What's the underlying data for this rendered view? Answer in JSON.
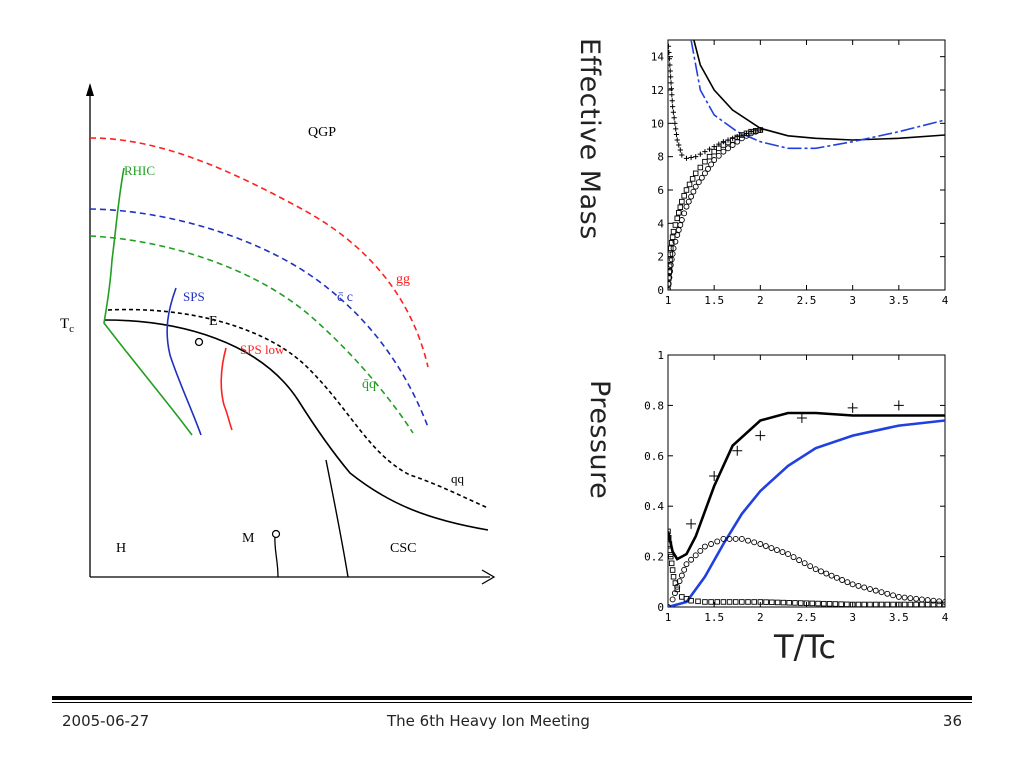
{
  "footer": {
    "date": "2005-06-27",
    "title": "The 6th Heavy Ion Meeting",
    "page": "36"
  },
  "phase_diagram": {
    "y_axis_label": "T",
    "y_axis_label_sub": "c",
    "regions": {
      "qgp": "QGP",
      "hadron": "H",
      "csc": "CSC"
    },
    "points": {
      "endpoint": "E",
      "m": "M"
    },
    "curves": {
      "gg": "gg",
      "cc": "c̄ c",
      "qq_bar": "q̄q",
      "qq": "qq",
      "rhic": "RHIC",
      "sps": "SPS",
      "sps_low": "SPS low"
    },
    "colors": {
      "red": "#ff2020",
      "blue": "#2030c0",
      "green": "#20a020",
      "black": "#000000"
    }
  },
  "chart_data": [
    {
      "type": "line",
      "ylabel": "Effective Mass",
      "xlim": [
        1,
        4
      ],
      "ylim": [
        0,
        15
      ],
      "xticks": [
        "1",
        "1.5",
        "2",
        "2.5",
        "3",
        "3.5",
        "4"
      ],
      "yticks": [
        "0",
        "2",
        "4",
        "6",
        "8",
        "10",
        "12",
        "14"
      ],
      "series": [
        {
          "color": "#000000",
          "style": "solid",
          "x": [
            1.28,
            1.35,
            1.5,
            1.7,
            2.0,
            2.3,
            2.6,
            3.0,
            3.5,
            4.0
          ],
          "y": [
            15,
            13.5,
            12.0,
            10.8,
            9.7,
            9.25,
            9.1,
            9.0,
            9.1,
            9.3
          ]
        },
        {
          "color": "#2040e0",
          "style": "dashdot",
          "x": [
            1.25,
            1.35,
            1.5,
            1.75,
            2.0,
            2.3,
            2.6,
            3.0,
            3.5,
            4.0
          ],
          "y": [
            15,
            12.0,
            10.5,
            9.5,
            8.9,
            8.5,
            8.5,
            8.9,
            9.5,
            10.2
          ]
        },
        {
          "color": "#000000",
          "style": "plus",
          "x": [
            1.0,
            1.02,
            1.05,
            1.1,
            1.15,
            1.2,
            1.3,
            1.4,
            1.5,
            1.6,
            1.7,
            1.8,
            1.9,
            2.0
          ],
          "y": [
            15,
            13.5,
            11.0,
            9.0,
            8.1,
            7.9,
            8.0,
            8.3,
            8.6,
            8.9,
            9.1,
            9.3,
            9.5,
            9.6
          ]
        },
        {
          "color": "#000000",
          "style": "square",
          "x": [
            1.0,
            1.03,
            1.06,
            1.1,
            1.15,
            1.2,
            1.3,
            1.4,
            1.5,
            1.6,
            1.7,
            1.8,
            1.9,
            2.0
          ],
          "y": [
            0,
            2.5,
            3.5,
            4.3,
            5.3,
            6.0,
            7.0,
            7.7,
            8.3,
            8.7,
            9.0,
            9.3,
            9.5,
            9.6
          ]
        },
        {
          "color": "#000000",
          "style": "circle",
          "x": [
            1.0,
            1.03,
            1.06,
            1.1,
            1.15,
            1.2,
            1.3,
            1.4,
            1.5,
            1.6,
            1.7,
            1.8,
            1.9,
            2.0
          ],
          "y": [
            0,
            1.5,
            2.5,
            3.3,
            4.2,
            5.0,
            6.2,
            7.0,
            7.8,
            8.3,
            8.7,
            9.1,
            9.4,
            9.6
          ]
        }
      ]
    },
    {
      "type": "line",
      "ylabel": "Pressure",
      "xlabel": "T/Tc",
      "xlim": [
        1,
        4
      ],
      "ylim": [
        0,
        1
      ],
      "xticks": [
        "1",
        "1.5",
        "2",
        "2.5",
        "3",
        "3.5",
        "4"
      ],
      "yticks": [
        "0",
        "0.2",
        "0.4",
        "0.6",
        "0.8",
        "1"
      ],
      "series": [
        {
          "color": "#000000",
          "style": "solid-thick",
          "x": [
            1.0,
            1.05,
            1.1,
            1.2,
            1.3,
            1.5,
            1.7,
            2.0,
            2.3,
            2.6,
            3.0,
            3.5,
            4.0
          ],
          "y": [
            0.3,
            0.22,
            0.19,
            0.21,
            0.28,
            0.48,
            0.64,
            0.74,
            0.77,
            0.77,
            0.76,
            0.76,
            0.76
          ]
        },
        {
          "color": "#2040e0",
          "style": "solid-thick",
          "x": [
            1.0,
            1.2,
            1.4,
            1.6,
            1.8,
            2.0,
            2.3,
            2.6,
            3.0,
            3.5,
            4.0
          ],
          "y": [
            0.0,
            0.02,
            0.12,
            0.25,
            0.37,
            0.46,
            0.56,
            0.63,
            0.68,
            0.72,
            0.74
          ]
        },
        {
          "color": "#000000",
          "style": "plus-markers",
          "x": [
            1.25,
            1.5,
            1.75,
            2.0,
            2.45,
            3.0,
            3.5
          ],
          "y": [
            0.33,
            0.52,
            0.62,
            0.68,
            0.75,
            0.79,
            0.8
          ]
        },
        {
          "color": "#000000",
          "style": "circle",
          "x": [
            1.0,
            1.05,
            1.1,
            1.2,
            1.4,
            1.6,
            1.8,
            2.0,
            2.3,
            2.6,
            3.0,
            3.5,
            4.0
          ],
          "y": [
            0.0,
            0.03,
            0.08,
            0.17,
            0.24,
            0.27,
            0.27,
            0.25,
            0.21,
            0.15,
            0.09,
            0.04,
            0.02
          ]
        },
        {
          "color": "#000000",
          "style": "square",
          "x": [
            1.0,
            1.03,
            1.06,
            1.1,
            1.15,
            1.25,
            1.4,
            1.6,
            2.0,
            2.5,
            3.0,
            3.5,
            4.0
          ],
          "y": [
            0.3,
            0.2,
            0.12,
            0.07,
            0.04,
            0.025,
            0.02,
            0.02,
            0.02,
            0.015,
            0.01,
            0.01,
            0.01
          ]
        }
      ]
    }
  ]
}
